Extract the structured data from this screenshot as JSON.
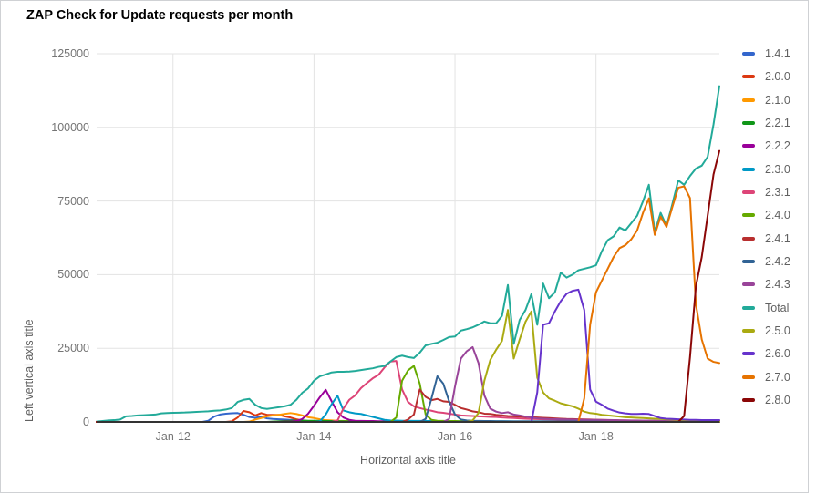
{
  "window": {
    "background": "#ffffff",
    "border_color": "#cfd1d4"
  },
  "chart_data": {
    "type": "line",
    "title": "ZAP Check for Update requests per month",
    "xlabel": "Horizontal axis title",
    "ylabel": "Left vertical axis title",
    "x_unit": "month",
    "x_start": "Dec-2010",
    "x_end": "Oct-2019",
    "n_points": 107,
    "ylim": [
      0,
      125000
    ],
    "grid": true,
    "legend_position": "right",
    "axis_color": "#333333",
    "gridline_color": "#e3e3e3",
    "tick_label_color": "#757575",
    "y_ticks": [
      {
        "value": 0,
        "label": "0"
      },
      {
        "value": 25000,
        "label": "25000"
      },
      {
        "value": 50000,
        "label": "50000"
      },
      {
        "value": 75000,
        "label": "75000"
      },
      {
        "value": 100000,
        "label": "100000"
      },
      {
        "value": 125000,
        "label": "125000"
      }
    ],
    "x_ticks": [
      {
        "index": 13,
        "label": "Jan-12"
      },
      {
        "index": 37,
        "label": "Jan-14"
      },
      {
        "index": 61,
        "label": "Jan-16"
      },
      {
        "index": 85,
        "label": "Jan-18"
      }
    ],
    "series_note": "monthly request counts; values before start_index are zero (line sits on baseline)",
    "series": [
      {
        "name": "1.4.1",
        "color": "#3366CC",
        "start_index": 19,
        "values": [
          400,
          1800,
          2500,
          2800,
          2950,
          3000,
          2400,
          1650,
          1400,
          1800,
          1200,
          1000,
          900,
          800,
          700,
          600,
          400,
          200,
          100,
          100,
          50,
          0,
          0,
          0,
          0,
          0,
          0,
          0,
          0,
          0,
          0,
          0,
          0,
          0,
          0,
          0,
          0,
          0,
          0,
          0,
          0,
          0,
          0,
          0,
          0,
          0,
          0,
          0,
          0,
          0,
          0,
          0,
          0,
          0,
          0,
          0,
          0,
          0,
          0,
          0,
          0,
          0,
          0,
          0,
          0,
          0,
          0,
          0,
          0,
          0,
          0,
          0,
          0,
          0,
          0,
          0,
          0,
          0,
          0,
          0,
          0,
          0,
          0,
          0,
          0,
          0,
          0,
          0
        ]
      },
      {
        "name": "2.0.0",
        "color": "#DC3912",
        "start_index": 23,
        "values": [
          200,
          1500,
          3700,
          3300,
          2200,
          3000,
          2400,
          2400,
          2400,
          1900,
          1500,
          900,
          500,
          300,
          200,
          150,
          150,
          100,
          100,
          100,
          100,
          50,
          50,
          50,
          50,
          50,
          0,
          0,
          0,
          0,
          0,
          0,
          0,
          0,
          0,
          0,
          0,
          0,
          0,
          0,
          0,
          0,
          0,
          0,
          0,
          0,
          0,
          0,
          0,
          0,
          0,
          0,
          0,
          0,
          0,
          0,
          0,
          0,
          0,
          0,
          0,
          0,
          0,
          0,
          0,
          0,
          0,
          0,
          0,
          0,
          0,
          0,
          0,
          0,
          0,
          0,
          0,
          0,
          0,
          0,
          0,
          0,
          0,
          0
        ]
      },
      {
        "name": "2.1.0",
        "color": "#FF9900",
        "start_index": 26,
        "values": [
          100,
          800,
          1300,
          1900,
          2200,
          2400,
          2700,
          3000,
          2700,
          2200,
          1600,
          1300,
          900,
          600,
          500,
          400,
          350,
          300,
          250,
          200,
          200,
          150,
          150,
          100,
          100,
          100,
          50,
          50,
          50,
          0,
          0,
          0,
          0,
          0,
          0,
          0,
          0,
          0,
          0,
          0,
          0,
          0,
          0,
          0,
          0,
          0,
          0,
          0,
          0,
          0,
          0,
          0,
          0,
          0,
          0,
          0,
          0,
          0,
          0,
          0,
          0,
          0,
          0,
          0,
          0,
          0,
          0,
          0,
          0,
          0,
          0,
          0,
          0,
          0,
          0,
          0,
          0,
          0,
          0,
          0,
          0
        ]
      },
      {
        "name": "2.2.1",
        "color": "#109618",
        "start_index": 30,
        "values": [
          100,
          200,
          300,
          400,
          450,
          450,
          400,
          400,
          350,
          300,
          300,
          250,
          250,
          200,
          200,
          200,
          150,
          150,
          150,
          150,
          100,
          100,
          100,
          100,
          100,
          100,
          100,
          100,
          100,
          100,
          100,
          50,
          50,
          50,
          50,
          50,
          50,
          50,
          50,
          50,
          50,
          50,
          50,
          50,
          50,
          50,
          50,
          50,
          50,
          50,
          50,
          50,
          50,
          50,
          50,
          50,
          50,
          50,
          50,
          50,
          50,
          50,
          50,
          50,
          50,
          50,
          50,
          50,
          50,
          50,
          50,
          50,
          50,
          50,
          50,
          50,
          50
        ]
      },
      {
        "name": "2.2.2",
        "color": "#990099",
        "start_index": 32,
        "values": [
          100,
          100,
          300,
          1000,
          2800,
          5500,
          8400,
          10900,
          7000,
          3300,
          1500,
          700,
          400,
          350,
          300,
          300,
          250,
          250,
          250,
          200,
          200,
          200,
          200,
          150,
          150,
          150,
          150,
          150,
          150,
          100,
          100,
          100,
          100,
          100,
          100,
          100,
          100,
          100,
          100,
          100,
          100,
          100,
          100,
          100,
          100,
          100,
          100,
          100,
          100,
          100,
          100,
          100,
          100,
          100,
          100,
          100,
          100,
          100,
          100,
          100,
          100,
          100,
          100,
          100,
          100,
          100,
          100,
          100,
          100,
          100,
          100,
          100,
          100,
          100,
          100
        ]
      },
      {
        "name": "2.3.0",
        "color": "#0099C6",
        "start_index": 38,
        "values": [
          200,
          2500,
          6000,
          8900,
          3900,
          3300,
          2900,
          2700,
          2200,
          1700,
          1200,
          700,
          500,
          450,
          400,
          400,
          350,
          350,
          300,
          300,
          300,
          300,
          300,
          250,
          250,
          250,
          250,
          250,
          250,
          250,
          250,
          250,
          250,
          200,
          200,
          200,
          200,
          200,
          200,
          200,
          200,
          200,
          200,
          200,
          200,
          200,
          200,
          200,
          200,
          200,
          200,
          200,
          200,
          200,
          200,
          200,
          200,
          200,
          200,
          200,
          200,
          200,
          200,
          200,
          200,
          200,
          200,
          200,
          200
        ]
      },
      {
        "name": "2.3.1",
        "color": "#DD4477",
        "start_index": 41,
        "values": [
          500,
          4500,
          7500,
          9000,
          11500,
          13200,
          14800,
          16000,
          18500,
          20500,
          20700,
          11000,
          6800,
          5300,
          4700,
          4200,
          3800,
          3300,
          3100,
          2800,
          2500,
          2200,
          2100,
          2000,
          1900,
          1800,
          1700,
          1650,
          1500,
          1400,
          1300,
          1200,
          1100,
          1000,
          950,
          900,
          850,
          800,
          750,
          700,
          650,
          600,
          600,
          550,
          500,
          500,
          450,
          450,
          400,
          400,
          350,
          350,
          300,
          300,
          300,
          250,
          250,
          250,
          200,
          200,
          200,
          200,
          200,
          150,
          150,
          150
        ]
      },
      {
        "name": "2.4.0",
        "color": "#66AA00",
        "start_index": 51,
        "values": [
          1500,
          14000,
          17500,
          19000,
          13000,
          2500,
          700,
          400,
          350,
          300,
          300,
          250,
          250,
          200,
          200,
          200,
          150,
          150,
          150,
          100,
          100,
          100,
          100,
          100,
          100,
          100,
          100,
          100,
          100,
          100,
          100,
          100,
          100,
          100,
          100,
          100,
          100,
          100,
          100,
          100,
          100,
          100,
          100,
          100,
          100,
          100,
          100,
          100,
          100,
          100,
          100,
          100,
          100,
          100,
          100,
          100
        ]
      },
      {
        "name": "2.4.1",
        "color": "#B82E2E",
        "start_index": 53,
        "values": [
          800,
          2500,
          11000,
          8500,
          7400,
          7800,
          7000,
          6800,
          5800,
          4700,
          4200,
          3600,
          3300,
          2800,
          2700,
          2400,
          2200,
          2000,
          1900,
          1800,
          1700,
          1600,
          1500,
          1400,
          1300,
          1200,
          1100,
          1000,
          950,
          900,
          850,
          800,
          750,
          700,
          650,
          600,
          550,
          500,
          450,
          400,
          400,
          350,
          350,
          300,
          300,
          300,
          250,
          250,
          250,
          200,
          200,
          200,
          200,
          200
        ]
      },
      {
        "name": "2.4.2",
        "color": "#316395",
        "start_index": 56,
        "values": [
          1000,
          8000,
          15500,
          13000,
          7000,
          2500,
          800,
          500,
          400,
          350,
          300,
          300,
          250,
          250,
          200,
          200,
          200,
          200,
          200,
          200,
          200,
          200,
          200,
          200,
          200,
          200,
          200,
          200,
          200,
          200,
          200,
          200,
          200,
          200,
          200,
          200,
          200,
          200,
          200,
          200,
          200,
          200,
          200,
          200,
          200,
          200,
          200,
          200,
          200,
          200,
          200
        ]
      },
      {
        "name": "2.4.3",
        "color": "#994499",
        "start_index": 60,
        "values": [
          1000,
          12000,
          21500,
          24000,
          25400,
          20000,
          9000,
          4500,
          3500,
          3000,
          3300,
          2500,
          2200,
          1800,
          1500,
          1200,
          1100,
          1000,
          950,
          900,
          850,
          800,
          750,
          700,
          700,
          700,
          650,
          600,
          600,
          550,
          550,
          500,
          500,
          450,
          450,
          400,
          400,
          400,
          350,
          350,
          350,
          300,
          300,
          300,
          300,
          250,
          250
        ]
      },
      {
        "name": "Total",
        "color": "#22AA99",
        "start_index": 0,
        "values": [
          100,
          300,
          500,
          600,
          800,
          1900,
          2000,
          2200,
          2300,
          2400,
          2500,
          2900,
          3000,
          3100,
          3150,
          3200,
          3300,
          3400,
          3500,
          3600,
          3800,
          3900,
          4200,
          4700,
          6800,
          7500,
          7800,
          5800,
          4700,
          4400,
          4700,
          5000,
          5300,
          5800,
          7500,
          9900,
          11400,
          14000,
          15500,
          16100,
          16800,
          17000,
          17000,
          17100,
          17300,
          17600,
          17900,
          18200,
          18700,
          19000,
          20500,
          22000,
          22500,
          22000,
          21700,
          23500,
          26000,
          26500,
          26900,
          27800,
          28800,
          29000,
          31000,
          31500,
          32100,
          33000,
          34100,
          33500,
          33500,
          36000,
          46500,
          26500,
          34600,
          38000,
          43400,
          33000,
          47000,
          42000,
          44000,
          50700,
          49000,
          50000,
          51500,
          52000,
          52500,
          53200,
          58000,
          61700,
          63000,
          66000,
          65000,
          67500,
          70000,
          74900,
          80500,
          64500,
          71000,
          66500,
          74000,
          82000,
          80500,
          83500,
          86000,
          87000,
          90000,
          101000,
          114000
        ]
      },
      {
        "name": "2.5.0",
        "color": "#AAAA11",
        "start_index": 64,
        "values": [
          500,
          3000,
          14000,
          21000,
          24500,
          27500,
          38000,
          21500,
          28000,
          34000,
          37500,
          15000,
          10000,
          8000,
          7200,
          6300,
          5800,
          5300,
          4500,
          3500,
          3000,
          2800,
          2400,
          2200,
          2000,
          1800,
          1600,
          1500,
          1400,
          1300,
          1200,
          1100,
          1000,
          900,
          800,
          700,
          600,
          500,
          500,
          400,
          400,
          300,
          300
        ]
      },
      {
        "name": "2.6.0",
        "color": "#6633CC",
        "start_index": 75,
        "values": [
          10000,
          33000,
          33500,
          37500,
          41000,
          43500,
          44500,
          44900,
          38000,
          11000,
          6900,
          5800,
          4500,
          3800,
          3200,
          2900,
          2700,
          2700,
          2800,
          2700,
          2000,
          1300,
          1100,
          1000,
          900,
          800,
          700,
          700,
          600,
          600,
          600,
          600
        ]
      },
      {
        "name": "2.7.0",
        "color": "#E67300",
        "start_index": 83,
        "values": [
          8000,
          33000,
          44000,
          48000,
          52000,
          56000,
          59000,
          60000,
          62000,
          65000,
          71000,
          75900,
          63500,
          69700,
          66200,
          73000,
          79500,
          80000,
          76000,
          40000,
          28000,
          21500,
          20400,
          20000
        ]
      },
      {
        "name": "2.8.0",
        "color": "#8B0707",
        "start_index": 100,
        "values": [
          2000,
          22000,
          46000,
          56000,
          70000,
          84000,
          92000
        ]
      }
    ]
  }
}
